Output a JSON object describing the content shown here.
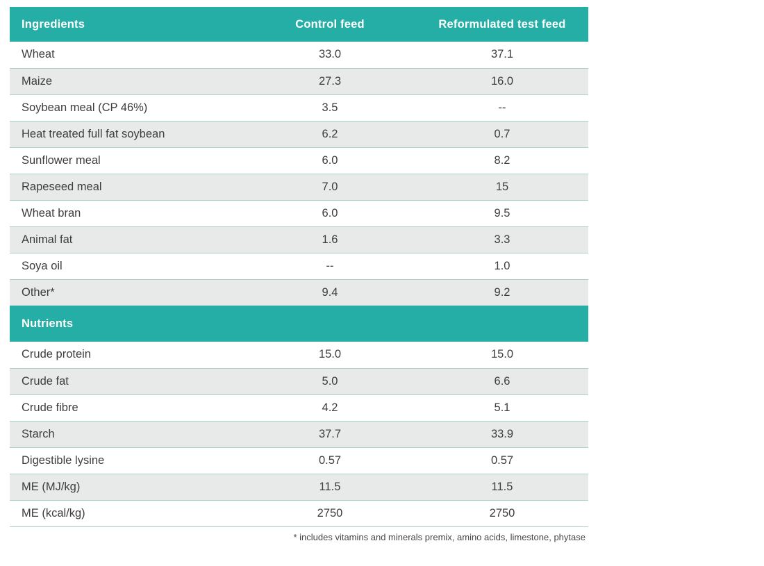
{
  "table": {
    "header": {
      "ingredients_label": "Ingredients",
      "control_label": "Control feed",
      "test_label": "Reformulated test feed"
    },
    "nutrients_section_label": "Nutrients",
    "ingredients_rows": [
      {
        "name": "Wheat",
        "control": "33.0",
        "test": "37.1"
      },
      {
        "name": "Maize",
        "control": "27.3",
        "test": "16.0"
      },
      {
        "name": "Soybean meal (CP 46%)",
        "control": "3.5",
        "test": "--"
      },
      {
        "name": "Heat treated full fat soybean",
        "control": "6.2",
        "test": "0.7"
      },
      {
        "name": "Sunflower meal",
        "control": "6.0",
        "test": "8.2"
      },
      {
        "name": "Rapeseed meal",
        "control": "7.0",
        "test": "15"
      },
      {
        "name": "Wheat bran",
        "control": "6.0",
        "test": "9.5"
      },
      {
        "name": "Animal fat",
        "control": "1.6",
        "test": "3.3"
      },
      {
        "name": "Soya oil",
        "control": "--",
        "test": "1.0"
      },
      {
        "name": "Other*",
        "control": "9.4",
        "test": "9.2"
      }
    ],
    "nutrients_rows": [
      {
        "name": "Crude protein",
        "control": "15.0",
        "test": "15.0"
      },
      {
        "name": "Crude fat",
        "control": "5.0",
        "test": "6.6"
      },
      {
        "name": "Crude fibre",
        "control": "4.2",
        "test": "5.1"
      },
      {
        "name": "Starch",
        "control": "37.7",
        "test": "33.9"
      },
      {
        "name": "Digestible lysine",
        "control": "0.57",
        "test": "0.57"
      },
      {
        "name": "ME (MJ/kg)",
        "control": "11.5",
        "test": "11.5"
      },
      {
        "name": "ME (kcal/kg)",
        "control": "2750",
        "test": "2750"
      }
    ],
    "footnote": "* includes vitamins and minerals premix, amino acids, limestone, phytase"
  },
  "colors": {
    "teal": "#25aea5",
    "stripe": "#e8e9e9",
    "divider": "#a6d1cd",
    "text": "#3d3d3d",
    "header_text": "#ffffff"
  },
  "chart_data": {
    "type": "table",
    "columns": [
      "Ingredients",
      "Control feed",
      "Reformulated test feed"
    ],
    "sections": [
      {
        "label": "Ingredients",
        "rows": [
          [
            "Wheat",
            "33.0",
            "37.1"
          ],
          [
            "Maize",
            "27.3",
            "16.0"
          ],
          [
            "Soybean meal (CP 46%)",
            "3.5",
            "--"
          ],
          [
            "Heat treated full fat soybean",
            "6.2",
            "0.7"
          ],
          [
            "Sunflower meal",
            "6.0",
            "8.2"
          ],
          [
            "Rapeseed meal",
            "7.0",
            "15"
          ],
          [
            "Wheat bran",
            "6.0",
            "9.5"
          ],
          [
            "Animal fat",
            "1.6",
            "3.3"
          ],
          [
            "Soya oil",
            "--",
            "1.0"
          ],
          [
            "Other*",
            "9.4",
            "9.2"
          ]
        ]
      },
      {
        "label": "Nutrients",
        "rows": [
          [
            "Crude protein",
            "15.0",
            "15.0"
          ],
          [
            "Crude fat",
            "5.0",
            "6.6"
          ],
          [
            "Crude fibre",
            "4.2",
            "5.1"
          ],
          [
            "Starch",
            "37.7",
            "33.9"
          ],
          [
            "Digestible lysine",
            "0.57",
            "0.57"
          ],
          [
            "ME (MJ/kg)",
            "11.5",
            "11.5"
          ],
          [
            "ME (kcal/kg)",
            "2750",
            "2750"
          ]
        ]
      }
    ],
    "footnote": "* includes vitamins and minerals premix, amino acids, limestone, phytase"
  }
}
